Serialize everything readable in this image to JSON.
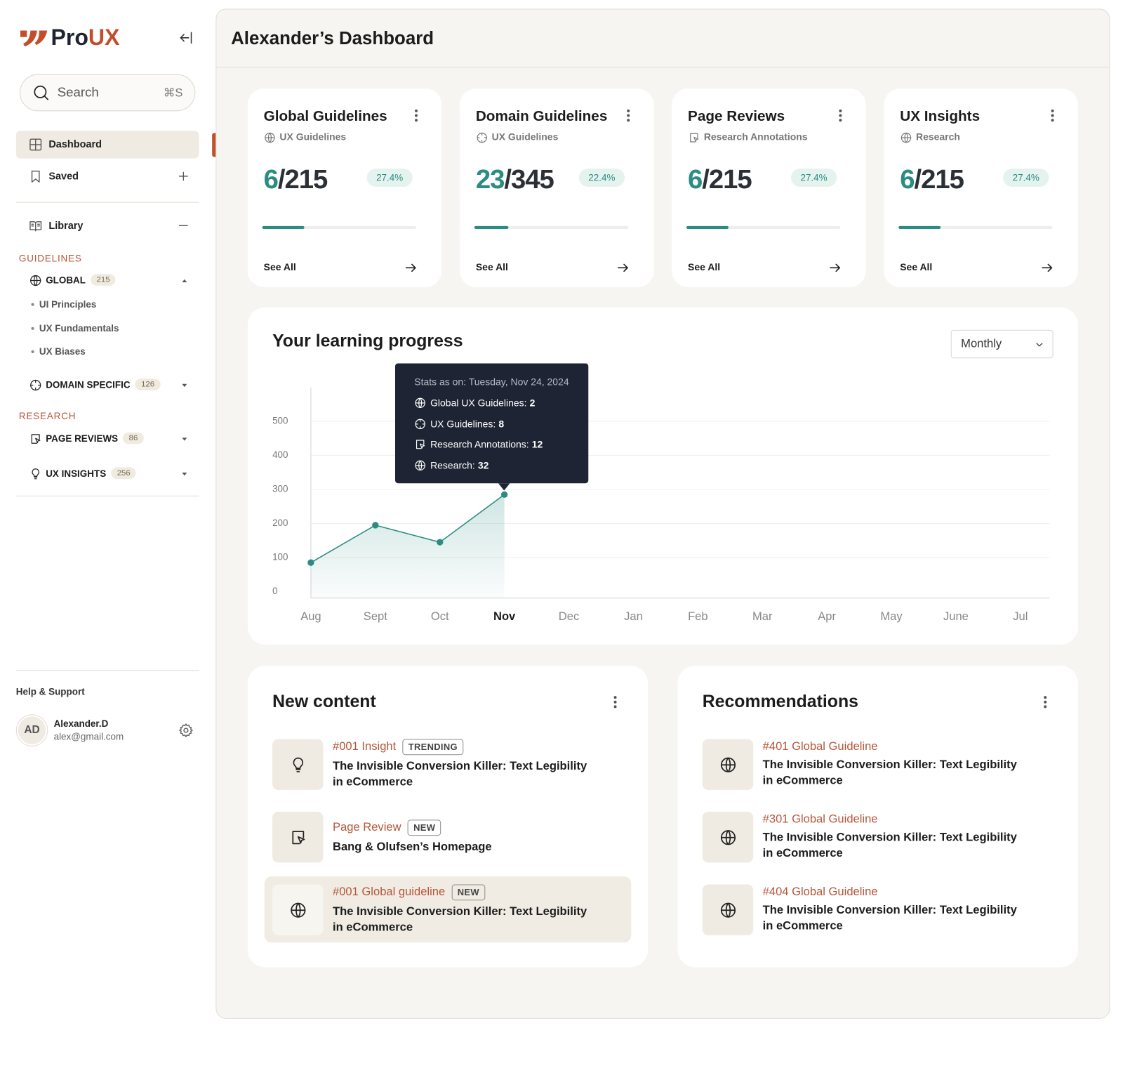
{
  "sidebar": {
    "logo": {
      "first": "Pro",
      "second": "UX"
    },
    "search": {
      "placeholder": "Search",
      "shortcut": "⌘S"
    },
    "nav": [
      "Dashboard",
      "Saved",
      "Library"
    ],
    "sections": [
      {
        "title": "GUIDELINES",
        "groups": [
          {
            "name": "GLOBAL",
            "count": 215,
            "items": [
              "UI Principles",
              "UX Fundamentals",
              "UX Biases"
            ]
          },
          {
            "name": "DOMAIN SPECIFIC",
            "count": 126
          }
        ]
      },
      {
        "title": "RESEARCH",
        "groups": [
          {
            "name": "PAGE REVIEWS",
            "count": 86
          },
          {
            "name": "UX INSIGHTS",
            "count": 256
          }
        ]
      }
    ],
    "help": "Help & Support",
    "user": {
      "initials": "AD",
      "name": "Alexander.D",
      "email": "alex@gmail.com"
    }
  },
  "header": {
    "title": "Alexander’s Dashboard"
  },
  "cards": [
    {
      "title": "Global Guidelines",
      "subtitle": "UX Guidelines",
      "score": "6/215",
      "percent": {
        "value": 27.4,
        "label": "27.4%"
      },
      "link": "See All"
    },
    {
      "title": "Domain Guidelines",
      "subtitle": "UX Guidelines",
      "score": "23/345",
      "percent": {
        "value": 22.4,
        "label": "22.4%"
      },
      "link": "See All"
    },
    {
      "title": "Page Reviews",
      "subtitle": "Research Annotations",
      "score": "6/215",
      "percent": {
        "value": 27.4,
        "label": "27.4%"
      },
      "link": "See All"
    },
    {
      "title": "UX Insights",
      "subtitle": "Research",
      "score": "6/215",
      "percent": {
        "value": 27.4,
        "label": "27.4%"
      },
      "link": "See All"
    }
  ],
  "progress": {
    "title": "Your learning progress",
    "period": "Monthly",
    "tooltip": {
      "heading": "Stats as on: Tuesday, Nov 24, 2024",
      "rows": [
        {
          "label": "Global UX Guidelines:",
          "value": 2
        },
        {
          "label": "UX Guidelines:",
          "value": 8
        },
        {
          "label": "Research Annotations:",
          "value": 12
        },
        {
          "label": "Research:",
          "value": 32
        }
      ]
    }
  },
  "chart_data": {
    "type": "line",
    "categories": [
      "Aug",
      "Sept",
      "Oct",
      "Nov",
      "Dec",
      "Jan",
      "Feb",
      "Mar",
      "Apr",
      "May",
      "June",
      "Jul"
    ],
    "values": [
      85,
      195,
      145,
      285,
      null,
      null,
      null,
      null,
      null,
      null,
      null,
      null
    ],
    "color": "#2a8c82",
    "ylim": [
      0,
      600
    ],
    "yticks": [
      0,
      100,
      200,
      300,
      400,
      500
    ],
    "grid": true
  },
  "new_content": {
    "title": "New content",
    "items": [
      {
        "tag": "#001 Insight",
        "badge": "TRENDING",
        "title": "The Invisible Conversion Killer: Text Legibility in eCommerce"
      },
      {
        "tag": "Page Review",
        "badge": "NEW",
        "title": "Bang & Olufsen’s Homepage"
      },
      {
        "tag": "#001 Global guideline",
        "badge": "NEW",
        "title": "The Invisible Conversion Killer: Text Legibility in eCommerce"
      }
    ]
  },
  "recommendations": {
    "title": "Recommendations",
    "items": [
      {
        "tag": "#401 Global Guideline",
        "title": "The Invisible Conversion Killer: Text Legibility in eCommerce"
      },
      {
        "tag": "#301 Global Guideline",
        "title": "The Invisible Conversion Killer: Text Legibility in eCommerce"
      },
      {
        "tag": "#404 Global Guideline",
        "title": "The Invisible Conversion Killer: Text Legibility in eCommerce"
      }
    ]
  }
}
